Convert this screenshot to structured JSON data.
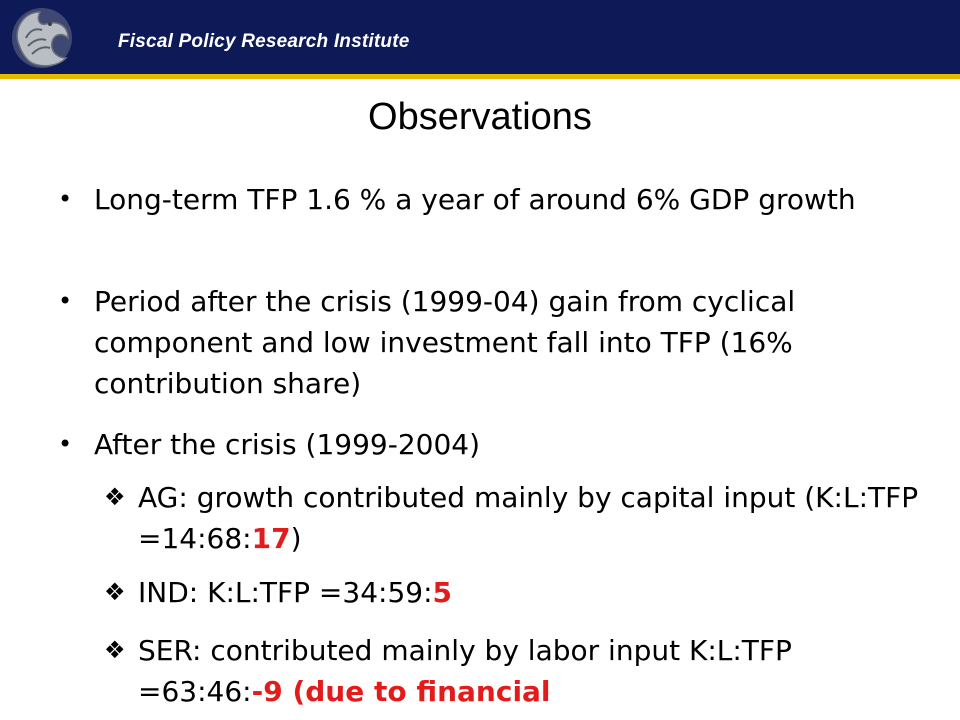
{
  "header": {
    "institute": "Fiscal Policy Research Institute"
  },
  "slide": {
    "title": "Observations",
    "bullets": [
      {
        "text": "Long-term TFP 1.6 % a year  of around 6% GDP growth"
      },
      {
        "text": "Period after the crisis (1999-04) gain from cyclical component and low investment fall into TFP (16% contribution share)"
      },
      {
        "text": "After the crisis (1999-2004)"
      }
    ],
    "subs": [
      {
        "prefix": "AG: growth contributed mainly by capital input (K:L:TFP =14:68:",
        "highlight": "17",
        "suffix": ")"
      },
      {
        "prefix": "IND: K:L:TFP =34:59:",
        "highlight": "5",
        "suffix": ""
      },
      {
        "prefix": "SER: contributed mainly by labor input K:L:TFP =63:46:",
        "highlight": "-9  (due to financial",
        "suffix": ""
      }
    ]
  },
  "icons": {
    "logo": "eagle-emblem-icon",
    "bullet": "bullet-dot-icon",
    "subbullet": "diamond-bullet-icon"
  },
  "colors": {
    "header_bg": "#0d1a57",
    "header_rule": "#e6b800",
    "highlight": "#e31b1b"
  }
}
